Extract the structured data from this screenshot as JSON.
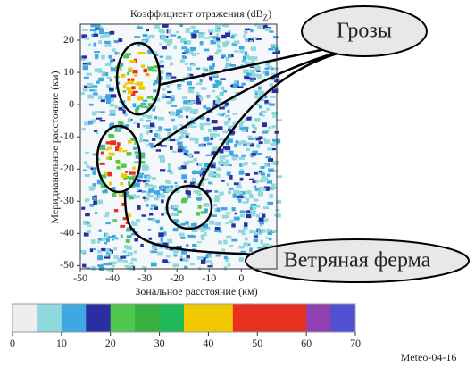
{
  "chart_data": {
    "type": "heatmap",
    "title": "Коэффициент отражения (dB",
    "title_subscript": "Z",
    "title_end": ")",
    "x_label": "Зональное расстояние (км)",
    "y_label": "Меридианальное расстояние (км)",
    "xlim": [
      -50,
      11
    ],
    "xticks": [
      -50,
      -40,
      -30,
      -20,
      -10,
      0
    ],
    "ylim": [
      -51,
      25
    ],
    "yticks": [
      20,
      10,
      0,
      -10,
      -20,
      -30,
      -40,
      -50
    ],
    "colorbar": {
      "clim": [
        0,
        70
      ],
      "ticks": [
        0,
        10,
        20,
        30,
        40,
        50,
        60,
        70
      ],
      "colors": [
        "#eeeeee",
        "#8fd8dc",
        "#40a8e0",
        "#2a2ea0",
        "#50c850",
        "#38b040",
        "#20b858",
        "#f0c800",
        "#f0c800",
        "#e83020",
        "#e83020",
        "#e83020",
        "#9040b0",
        "#5050d0"
      ]
    },
    "annotations": [
      "Грозы",
      "Ветряная ферма"
    ],
    "footer": "Meteo-04-16"
  }
}
